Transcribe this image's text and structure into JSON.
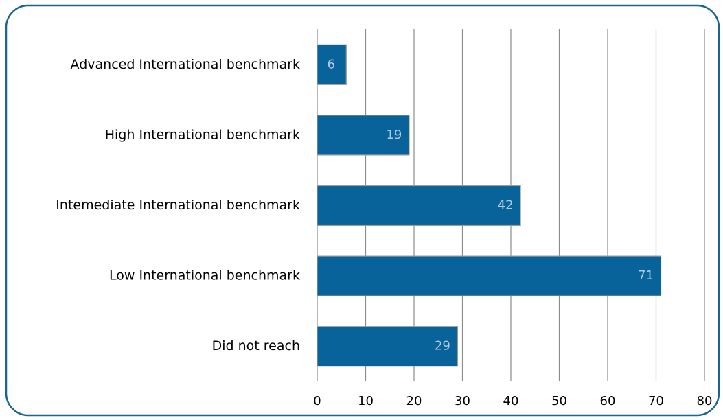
{
  "chart_data": {
    "type": "barh",
    "categories": [
      "Advanced International benchmark",
      "High International benchmark",
      "Intemediate International benchmark",
      "Low International benchmark",
      "Did not reach"
    ],
    "values": [
      6,
      19,
      42,
      71,
      29
    ],
    "color": "#08639a",
    "xlim": [
      0,
      80
    ],
    "xticks": [
      0,
      10,
      20,
      30,
      40,
      50,
      60,
      70,
      80
    ],
    "grid": true
  }
}
